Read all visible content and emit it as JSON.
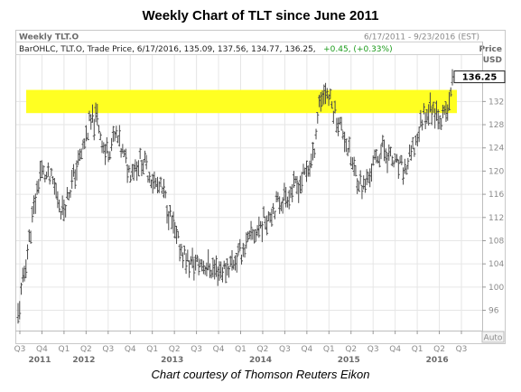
{
  "chart_data": {
    "type": "ohlc",
    "title": "Weekly Chart of TLT since June 2011",
    "symbol_label": "Weekly TLT.O",
    "date_range": "6/17/2011 - 9/23/2016 (EST)",
    "ylabel": "Price",
    "yunit": "USD",
    "info_line": {
      "prefix": "BarOHLC, TLT.O, Trade Price, 6/17/2016, 135.09, 137.56, 134.77, 136.25,",
      "change": "+0.45, (+0.33%)"
    },
    "last_price": "136.25",
    "ylim": [
      92.5,
      140
    ],
    "yticks": [
      "96",
      "100",
      "104",
      "108",
      "112",
      "116",
      "120",
      "124",
      "128",
      "132"
    ],
    "quarter_ticks": [
      "Q3",
      "Q4",
      "Q1",
      "Q2",
      "Q3",
      "Q4",
      "Q1",
      "Q2",
      "Q3",
      "Q4",
      "Q1",
      "Q2",
      "Q3",
      "Q4",
      "Q1",
      "Q2",
      "Q3",
      "Q4",
      "Q1",
      "Q2",
      "Q3"
    ],
    "year_ticks": [
      {
        "label": "2011",
        "quarter_index": 0
      },
      {
        "label": "2012",
        "quarter_index": 2
      },
      {
        "label": "2013",
        "quarter_index": 6
      },
      {
        "label": "2014",
        "quarter_index": 10
      },
      {
        "label": "2015",
        "quarter_index": 14
      },
      {
        "label": "2016",
        "quarter_index": 18
      }
    ],
    "resistance_band": [
      130,
      134
    ],
    "band_color": "#ffff22",
    "bar_color": "#4a4a4a",
    "auto_label": "Auto",
    "price_path": [
      {
        "week": 0,
        "price": 95
      },
      {
        "week": 8,
        "price": 110
      },
      {
        "week": 14,
        "price": 120
      },
      {
        "week": 22,
        "price": 118
      },
      {
        "week": 28,
        "price": 113
      },
      {
        "week": 34,
        "price": 118
      },
      {
        "week": 40,
        "price": 123
      },
      {
        "week": 45,
        "price": 128
      },
      {
        "week": 50,
        "price": 129
      },
      {
        "week": 55,
        "price": 123
      },
      {
        "week": 62,
        "price": 126
      },
      {
        "week": 70,
        "price": 120
      },
      {
        "week": 78,
        "price": 122
      },
      {
        "week": 86,
        "price": 118
      },
      {
        "week": 92,
        "price": 116
      },
      {
        "week": 100,
        "price": 108
      },
      {
        "week": 108,
        "price": 104
      },
      {
        "week": 116,
        "price": 104
      },
      {
        "week": 124,
        "price": 103
      },
      {
        "week": 130,
        "price": 103
      },
      {
        "week": 138,
        "price": 105
      },
      {
        "week": 146,
        "price": 108
      },
      {
        "week": 154,
        "price": 111
      },
      {
        "week": 162,
        "price": 114
      },
      {
        "week": 170,
        "price": 116
      },
      {
        "week": 178,
        "price": 118
      },
      {
        "week": 186,
        "price": 122
      },
      {
        "week": 190,
        "price": 132
      },
      {
        "week": 194,
        "price": 134
      },
      {
        "week": 200,
        "price": 130
      },
      {
        "week": 206,
        "price": 126
      },
      {
        "week": 212,
        "price": 120
      },
      {
        "week": 218,
        "price": 117
      },
      {
        "week": 224,
        "price": 121
      },
      {
        "week": 230,
        "price": 124
      },
      {
        "week": 238,
        "price": 121
      },
      {
        "week": 244,
        "price": 120
      },
      {
        "week": 250,
        "price": 124
      },
      {
        "week": 256,
        "price": 130
      },
      {
        "week": 262,
        "price": 131
      },
      {
        "week": 268,
        "price": 129
      },
      {
        "week": 272,
        "price": 131
      },
      {
        "week": 274,
        "price": 136
      }
    ]
  },
  "caption": "Chart courtesy of Thomson Reuters Eikon"
}
